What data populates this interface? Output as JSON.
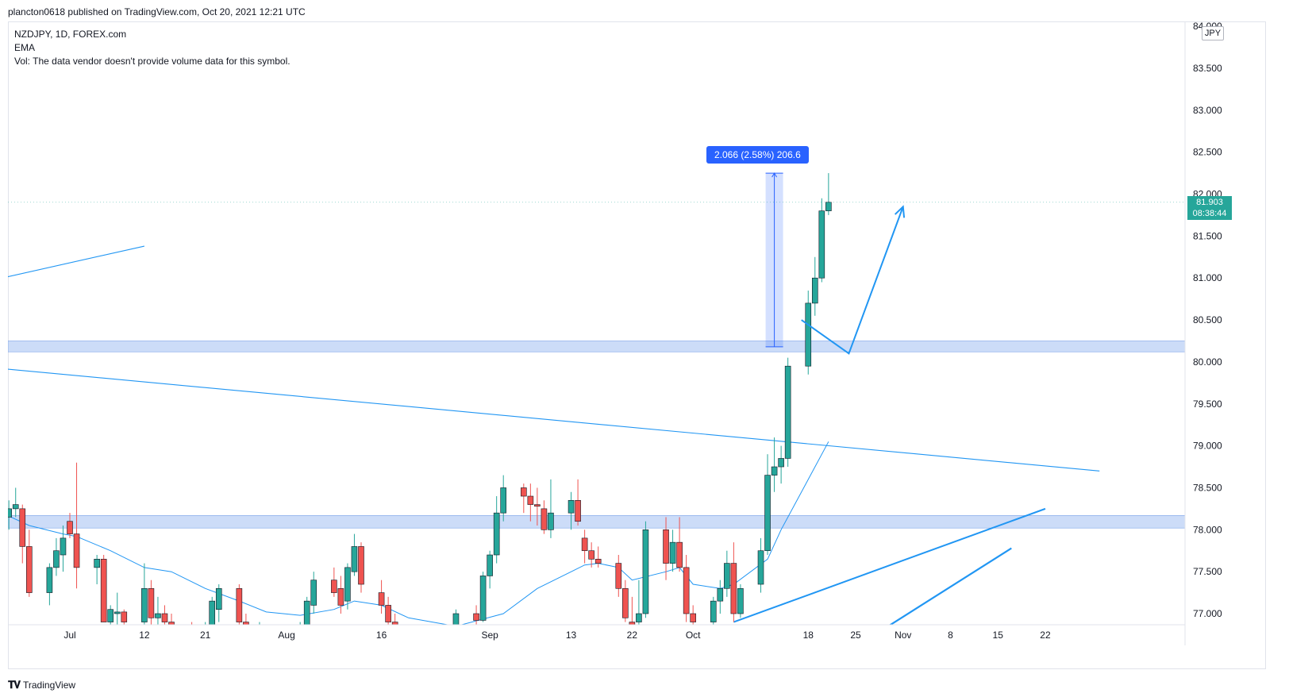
{
  "caption": "plancton0618 published on TradingView.com, Oct 20, 2021 12:21 UTC",
  "legend": {
    "symbol": "NZDJPY, 1D, FOREX.com",
    "indicator": "EMA",
    "volume_note": "Vol: The data vendor doesn't provide volume data for this symbol."
  },
  "currency_badge": "JPY",
  "price_tag": {
    "price": "81.903",
    "countdown": "08:38:44"
  },
  "measure_label": "2.066 (2.58%) 206.6",
  "footer": {
    "logo_text": "TradingView"
  },
  "colors": {
    "up": "#26a69a",
    "down": "#ef5350",
    "drawing": "#2196f3",
    "zone": "#bbd0f5",
    "measure": "#2962ff"
  },
  "chart_data": {
    "type": "candlestick",
    "title": "NZDJPY, 1D, FOREX.com",
    "ylim": [
      76.86,
      84.0
    ],
    "y_ticks": [
      "84.000",
      "83.500",
      "83.000",
      "82.500",
      "82.000",
      "81.500",
      "81.000",
      "80.500",
      "80.000",
      "79.500",
      "79.000",
      "78.500",
      "78.000",
      "77.500",
      "77.000"
    ],
    "x_ticks": [
      {
        "label": "Jul",
        "date": "2021-07-01"
      },
      {
        "label": "12",
        "date": "2021-07-12"
      },
      {
        "label": "21",
        "date": "2021-07-21"
      },
      {
        "label": "Aug",
        "date": "2021-08-02"
      },
      {
        "label": "16",
        "date": "2021-08-16"
      },
      {
        "label": "Sep",
        "date": "2021-09-01"
      },
      {
        "label": "13",
        "date": "2021-09-13"
      },
      {
        "label": "22",
        "date": "2021-09-22"
      },
      {
        "label": "Oct",
        "date": "2021-10-01"
      },
      {
        "label": "18",
        "date": "2021-10-18"
      },
      {
        "label": "25",
        "date": "2021-10-25"
      },
      {
        "label": "Nov",
        "date": "2021-11-01"
      },
      {
        "label": "8",
        "date": "2021-11-08"
      },
      {
        "label": "15",
        "date": "2021-11-15"
      },
      {
        "label": "22",
        "date": "2021-11-22"
      }
    ],
    "candles": [
      {
        "date": "2021-06-21",
        "o": 77.6,
        "h": 78.3,
        "l": 77.3,
        "c": 78.2
      },
      {
        "date": "2021-06-22",
        "o": 78.15,
        "h": 78.35,
        "l": 78.0,
        "c": 78.25
      },
      {
        "date": "2021-06-23",
        "o": 78.25,
        "h": 78.5,
        "l": 78.15,
        "c": 78.3
      },
      {
        "date": "2021-06-24",
        "o": 78.25,
        "h": 78.3,
        "l": 77.6,
        "c": 77.8
      },
      {
        "date": "2021-06-25",
        "o": 77.8,
        "h": 78.0,
        "l": 77.2,
        "c": 77.25
      },
      {
        "date": "2021-06-28",
        "o": 77.25,
        "h": 77.6,
        "l": 77.1,
        "c": 77.55
      },
      {
        "date": "2021-06-29",
        "o": 77.55,
        "h": 77.9,
        "l": 77.45,
        "c": 77.75
      },
      {
        "date": "2021-06-30",
        "o": 77.7,
        "h": 78.05,
        "l": 77.5,
        "c": 77.9
      },
      {
        "date": "2021-07-01",
        "o": 78.1,
        "h": 78.2,
        "l": 77.9,
        "c": 77.95
      },
      {
        "date": "2021-07-02",
        "o": 77.95,
        "h": 78.8,
        "l": 77.3,
        "c": 77.55
      },
      {
        "date": "2021-07-05",
        "o": 77.55,
        "h": 77.7,
        "l": 77.35,
        "c": 77.65
      },
      {
        "date": "2021-07-06",
        "o": 77.65,
        "h": 77.7,
        "l": 76.9,
        "c": 76.9
      },
      {
        "date": "2021-07-07",
        "o": 76.9,
        "h": 77.1,
        "l": 76.7,
        "c": 77.05
      },
      {
        "date": "2021-07-08",
        "o": 77.0,
        "h": 77.25,
        "l": 76.8,
        "c": 77.02
      },
      {
        "date": "2021-07-09",
        "o": 77.02,
        "h": 77.05,
        "l": 76.8,
        "c": 76.9
      },
      {
        "date": "2021-07-12",
        "o": 76.9,
        "h": 77.6,
        "l": 76.85,
        "c": 77.3
      },
      {
        "date": "2021-07-13",
        "o": 77.3,
        "h": 77.4,
        "l": 76.8,
        "c": 76.95
      },
      {
        "date": "2021-07-14",
        "o": 76.95,
        "h": 77.2,
        "l": 76.7,
        "c": 77.0
      },
      {
        "date": "2021-07-15",
        "o": 77.0,
        "h": 77.1,
        "l": 76.8,
        "c": 76.9
      },
      {
        "date": "2021-07-16",
        "o": 76.9,
        "h": 77.0,
        "l": 76.7,
        "c": 76.8
      },
      {
        "date": "2021-07-19",
        "o": 76.8,
        "h": 76.9,
        "l": 76.5,
        "c": 76.6
      },
      {
        "date": "2021-07-20",
        "o": 76.6,
        "h": 76.8,
        "l": 76.4,
        "c": 76.7
      },
      {
        "date": "2021-07-21",
        "o": 76.7,
        "h": 76.9,
        "l": 76.6,
        "c": 76.85
      },
      {
        "date": "2021-07-22",
        "o": 76.85,
        "h": 77.2,
        "l": 76.75,
        "c": 77.15
      },
      {
        "date": "2021-07-23",
        "o": 77.05,
        "h": 77.35,
        "l": 76.9,
        "c": 77.3
      },
      {
        "date": "2021-07-26",
        "o": 77.3,
        "h": 77.35,
        "l": 76.8,
        "c": 76.9
      },
      {
        "date": "2021-07-27",
        "o": 76.9,
        "h": 77.0,
        "l": 76.5,
        "c": 76.6
      },
      {
        "date": "2021-07-28",
        "o": 76.6,
        "h": 76.8,
        "l": 76.5,
        "c": 76.7
      },
      {
        "date": "2021-07-29",
        "o": 76.7,
        "h": 76.9,
        "l": 76.6,
        "c": 76.8
      },
      {
        "date": "2021-07-30",
        "o": 76.8,
        "h": 76.85,
        "l": 76.6,
        "c": 76.7
      },
      {
        "date": "2021-08-02",
        "o": 76.7,
        "h": 76.8,
        "l": 76.5,
        "c": 76.6
      },
      {
        "date": "2021-08-03",
        "o": 76.6,
        "h": 76.8,
        "l": 76.4,
        "c": 76.75
      },
      {
        "date": "2021-08-04",
        "o": 76.75,
        "h": 76.9,
        "l": 76.6,
        "c": 76.85
      },
      {
        "date": "2021-08-05",
        "o": 76.85,
        "h": 77.2,
        "l": 76.7,
        "c": 77.15
      },
      {
        "date": "2021-08-06",
        "o": 77.1,
        "h": 77.5,
        "l": 77.0,
        "c": 77.4
      },
      {
        "date": "2021-08-09",
        "o": 77.4,
        "h": 77.55,
        "l": 77.2,
        "c": 77.25
      },
      {
        "date": "2021-08-10",
        "o": 77.3,
        "h": 77.45,
        "l": 77.0,
        "c": 77.1
      },
      {
        "date": "2021-08-11",
        "o": 77.15,
        "h": 77.6,
        "l": 77.05,
        "c": 77.55
      },
      {
        "date": "2021-08-12",
        "o": 77.5,
        "h": 77.95,
        "l": 77.45,
        "c": 77.8
      },
      {
        "date": "2021-08-13",
        "o": 77.8,
        "h": 77.85,
        "l": 77.25,
        "c": 77.35
      },
      {
        "date": "2021-08-16",
        "o": 77.25,
        "h": 77.4,
        "l": 77.0,
        "c": 77.1
      },
      {
        "date": "2021-08-17",
        "o": 77.1,
        "h": 77.2,
        "l": 76.8,
        "c": 76.9
      },
      {
        "date": "2021-08-18",
        "o": 76.9,
        "h": 77.0,
        "l": 76.6,
        "c": 76.7
      },
      {
        "date": "2021-08-19",
        "o": 76.7,
        "h": 76.8,
        "l": 76.4,
        "c": 76.5
      },
      {
        "date": "2021-08-20",
        "o": 76.5,
        "h": 76.6,
        "l": 76.3,
        "c": 76.4
      },
      {
        "date": "2021-08-23",
        "o": 76.4,
        "h": 76.6,
        "l": 76.3,
        "c": 76.55
      },
      {
        "date": "2021-08-24",
        "o": 76.55,
        "h": 76.7,
        "l": 76.45,
        "c": 76.65
      },
      {
        "date": "2021-08-25",
        "o": 76.65,
        "h": 76.8,
        "l": 76.55,
        "c": 76.75
      },
      {
        "date": "2021-08-26",
        "o": 76.75,
        "h": 76.85,
        "l": 76.6,
        "c": 76.8
      },
      {
        "date": "2021-08-27",
        "o": 76.8,
        "h": 77.05,
        "l": 76.7,
        "c": 77.0
      },
      {
        "date": "2021-08-30",
        "o": 77.0,
        "h": 77.1,
        "l": 76.85,
        "c": 76.92
      },
      {
        "date": "2021-08-31",
        "o": 76.92,
        "h": 77.5,
        "l": 76.9,
        "c": 77.45
      },
      {
        "date": "2021-09-01",
        "o": 77.45,
        "h": 77.75,
        "l": 77.3,
        "c": 77.7
      },
      {
        "date": "2021-09-02",
        "o": 77.7,
        "h": 78.4,
        "l": 77.6,
        "c": 78.2
      },
      {
        "date": "2021-09-03",
        "o": 78.2,
        "h": 78.65,
        "l": 78.1,
        "c": 78.5
      },
      {
        "date": "2021-09-06",
        "o": 78.5,
        "h": 78.55,
        "l": 78.2,
        "c": 78.4
      },
      {
        "date": "2021-09-07",
        "o": 78.4,
        "h": 78.55,
        "l": 78.1,
        "c": 78.3
      },
      {
        "date": "2021-09-08",
        "o": 78.3,
        "h": 78.5,
        "l": 78.05,
        "c": 78.28
      },
      {
        "date": "2021-09-09",
        "o": 78.25,
        "h": 78.35,
        "l": 77.95,
        "c": 78.0
      },
      {
        "date": "2021-09-10",
        "o": 78.0,
        "h": 78.6,
        "l": 77.9,
        "c": 78.2
      },
      {
        "date": "2021-09-13",
        "o": 78.2,
        "h": 78.45,
        "l": 78.0,
        "c": 78.35
      },
      {
        "date": "2021-09-14",
        "o": 78.35,
        "h": 78.6,
        "l": 78.05,
        "c": 78.1
      },
      {
        "date": "2021-09-15",
        "o": 77.9,
        "h": 78.0,
        "l": 77.6,
        "c": 77.75
      },
      {
        "date": "2021-09-16",
        "o": 77.75,
        "h": 77.85,
        "l": 77.55,
        "c": 77.65
      },
      {
        "date": "2021-09-17",
        "o": 77.65,
        "h": 77.8,
        "l": 77.55,
        "c": 77.6
      },
      {
        "date": "2021-09-20",
        "o": 77.6,
        "h": 77.7,
        "l": 77.2,
        "c": 77.3
      },
      {
        "date": "2021-09-21",
        "o": 77.3,
        "h": 77.4,
        "l": 76.9,
        "c": 76.95
      },
      {
        "date": "2021-09-22",
        "o": 76.9,
        "h": 77.2,
        "l": 76.8,
        "c": 76.85
      },
      {
        "date": "2021-09-23",
        "o": 76.9,
        "h": 77.4,
        "l": 76.85,
        "c": 77.0
      },
      {
        "date": "2021-09-24",
        "o": 77.0,
        "h": 78.1,
        "l": 76.95,
        "c": 78.0
      },
      {
        "date": "2021-09-27",
        "o": 78.0,
        "h": 78.15,
        "l": 77.4,
        "c": 77.6
      },
      {
        "date": "2021-09-28",
        "o": 77.6,
        "h": 78.0,
        "l": 77.5,
        "c": 77.85
      },
      {
        "date": "2021-09-29",
        "o": 77.85,
        "h": 78.15,
        "l": 77.5,
        "c": 77.55
      },
      {
        "date": "2021-09-30",
        "o": 77.55,
        "h": 77.7,
        "l": 76.9,
        "c": 77.0
      },
      {
        "date": "2021-10-01",
        "o": 77.0,
        "h": 77.1,
        "l": 76.8,
        "c": 76.9
      },
      {
        "date": "2021-10-04",
        "o": 76.9,
        "h": 77.2,
        "l": 76.85,
        "c": 77.15
      },
      {
        "date": "2021-10-05",
        "o": 77.15,
        "h": 77.4,
        "l": 77.0,
        "c": 77.3
      },
      {
        "date": "2021-10-06",
        "o": 77.3,
        "h": 77.75,
        "l": 77.2,
        "c": 77.6
      },
      {
        "date": "2021-10-07",
        "o": 77.6,
        "h": 77.85,
        "l": 76.9,
        "c": 77.0
      },
      {
        "date": "2021-10-08",
        "o": 77.0,
        "h": 77.35,
        "l": 76.95,
        "c": 77.3
      },
      {
        "date": "2021-10-11",
        "o": 77.35,
        "h": 77.9,
        "l": 77.25,
        "c": 77.75
      },
      {
        "date": "2021-10-12",
        "o": 77.75,
        "h": 78.9,
        "l": 77.7,
        "c": 78.65
      },
      {
        "date": "2021-10-13",
        "o": 78.65,
        "h": 79.1,
        "l": 78.45,
        "c": 78.75
      },
      {
        "date": "2021-10-14",
        "o": 78.75,
        "h": 79.0,
        "l": 78.55,
        "c": 78.85
      },
      {
        "date": "2021-10-15",
        "o": 78.85,
        "h": 80.05,
        "l": 78.75,
        "c": 79.95
      },
      {
        "date": "2021-10-18",
        "o": 79.95,
        "h": 80.85,
        "l": 79.85,
        "c": 80.7
      },
      {
        "date": "2021-10-19",
        "o": 80.7,
        "h": 81.25,
        "l": 80.55,
        "c": 81.0
      },
      {
        "date": "2021-10-20",
        "o": 81.0,
        "h": 81.95,
        "l": 80.95,
        "c": 81.8
      },
      {
        "date": "2021-10-21",
        "o": 81.8,
        "h": 82.25,
        "l": 81.75,
        "c": 81.903
      }
    ],
    "ema": [
      [
        "2021-06-21",
        78.2
      ],
      [
        "2021-06-25",
        78.05
      ],
      [
        "2021-06-30",
        77.95
      ],
      [
        "2021-07-02",
        77.92
      ],
      [
        "2021-07-07",
        77.75
      ],
      [
        "2021-07-12",
        77.55
      ],
      [
        "2021-07-16",
        77.5
      ],
      [
        "2021-07-21",
        77.3
      ],
      [
        "2021-07-26",
        77.15
      ],
      [
        "2021-07-30",
        77.02
      ],
      [
        "2021-08-04",
        76.98
      ],
      [
        "2021-08-09",
        77.05
      ],
      [
        "2021-08-12",
        77.15
      ],
      [
        "2021-08-16",
        77.1
      ],
      [
        "2021-08-20",
        76.95
      ],
      [
        "2021-08-27",
        76.85
      ],
      [
        "2021-09-03",
        77.0
      ],
      [
        "2021-09-08",
        77.3
      ],
      [
        "2021-09-13",
        77.5
      ],
      [
        "2021-09-15",
        77.58
      ],
      [
        "2021-09-17",
        77.6
      ],
      [
        "2021-09-20",
        77.55
      ],
      [
        "2021-09-22",
        77.4
      ],
      [
        "2021-09-27",
        77.5
      ],
      [
        "2021-09-29",
        77.55
      ],
      [
        "2021-10-01",
        77.35
      ],
      [
        "2021-10-05",
        77.3
      ],
      [
        "2021-10-07",
        77.35
      ],
      [
        "2021-10-12",
        77.65
      ],
      [
        "2021-10-14",
        78.0
      ],
      [
        "2021-10-18",
        78.6
      ],
      [
        "2021-10-21",
        79.05
      ]
    ],
    "zones": [
      {
        "from": 80.12,
        "to": 80.25
      },
      {
        "from": 78.02,
        "to": 78.17
      }
    ],
    "trendlines": [
      {
        "x1": "2021-06-21",
        "y1": 81.0,
        "x2": "2021-07-12",
        "y2": 81.38
      },
      {
        "x1": "2021-06-21",
        "y1": 79.92,
        "x2": "2021-11-30",
        "y2": 78.7
      },
      {
        "x1": "2021-10-07",
        "y1": 76.9,
        "x2": "2021-11-22",
        "y2": 78.25
      },
      {
        "x1": "2021-10-30",
        "y1": 76.86,
        "x2": "2021-11-17",
        "y2": 77.78
      }
    ],
    "projection": [
      [
        "2021-10-17",
        80.5
      ],
      [
        "2021-10-24",
        80.1
      ],
      [
        "2021-11-01",
        81.85
      ]
    ],
    "measure": {
      "date": "2021-10-13",
      "from": 80.18,
      "to": 82.25,
      "change": "2.066 (2.58%) 206.6"
    },
    "last_price": 81.903
  }
}
